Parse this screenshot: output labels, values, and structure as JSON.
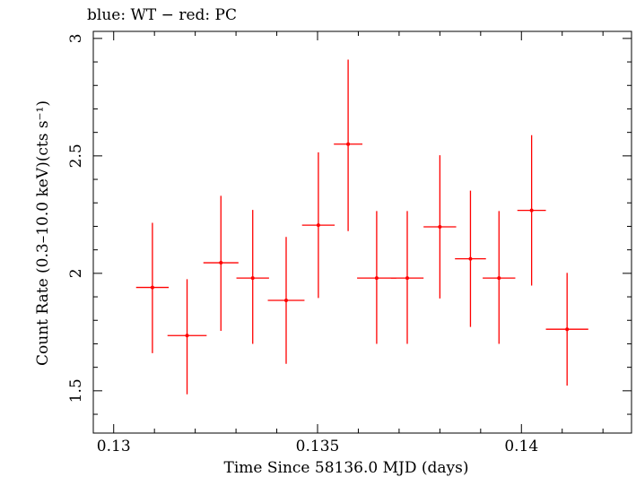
{
  "chart_data": {
    "type": "scatter",
    "title": "blue: WT − red: PC",
    "xlabel": "Time Since 58136.0 MJD (days)",
    "ylabel": "Count Rate (0.3–10.0 keV)(cts s⁻¹)",
    "xlim": [
      0.1295,
      0.1427
    ],
    "ylim": [
      1.32,
      3.03
    ],
    "x_ticks": [
      0.13,
      0.135,
      0.14
    ],
    "x_tick_labels": [
      "0.13",
      "0.135",
      "0.14"
    ],
    "y_ticks": [
      1.5,
      2,
      2.5,
      3
    ],
    "y_tick_labels": [
      "1.5",
      "2",
      "2.5",
      "3"
    ],
    "grid": false,
    "series": [
      {
        "name": "PC",
        "color": "#ff0000",
        "points": [
          {
            "x": 0.13095,
            "y": 1.94,
            "xerr": 0.0004,
            "yerr_lo": 0.28,
            "yerr_hi": 0.275
          },
          {
            "x": 0.1318,
            "y": 1.735,
            "xerr": 0.00048,
            "yerr_lo": 0.25,
            "yerr_hi": 0.24
          },
          {
            "x": 0.13263,
            "y": 2.045,
            "xerr": 0.00043,
            "yerr_lo": 0.29,
            "yerr_hi": 0.285
          },
          {
            "x": 0.13341,
            "y": 1.98,
            "xerr": 0.0004,
            "yerr_lo": 0.28,
            "yerr_hi": 0.29
          },
          {
            "x": 0.13423,
            "y": 1.885,
            "xerr": 0.00045,
            "yerr_lo": 0.27,
            "yerr_hi": 0.27
          },
          {
            "x": 0.13502,
            "y": 2.205,
            "xerr": 0.0004,
            "yerr_lo": 0.31,
            "yerr_hi": 0.31
          },
          {
            "x": 0.13575,
            "y": 2.55,
            "xerr": 0.00035,
            "yerr_lo": 0.37,
            "yerr_hi": 0.36
          },
          {
            "x": 0.13645,
            "y": 1.98,
            "xerr": 0.00048,
            "yerr_lo": 0.28,
            "yerr_hi": 0.285
          },
          {
            "x": 0.1372,
            "y": 1.98,
            "xerr": 0.0004,
            "yerr_lo": 0.28,
            "yerr_hi": 0.285
          },
          {
            "x": 0.138,
            "y": 2.198,
            "xerr": 0.0004,
            "yerr_lo": 0.305,
            "yerr_hi": 0.305
          },
          {
            "x": 0.13875,
            "y": 2.062,
            "xerr": 0.00038,
            "yerr_lo": 0.29,
            "yerr_hi": 0.29
          },
          {
            "x": 0.13945,
            "y": 1.98,
            "xerr": 0.0004,
            "yerr_lo": 0.28,
            "yerr_hi": 0.285
          },
          {
            "x": 0.14025,
            "y": 2.268,
            "xerr": 0.00035,
            "yerr_lo": 0.32,
            "yerr_hi": 0.32
          },
          {
            "x": 0.14112,
            "y": 1.762,
            "xerr": 0.00052,
            "yerr_lo": 0.24,
            "yerr_hi": 0.24
          }
        ]
      }
    ]
  }
}
